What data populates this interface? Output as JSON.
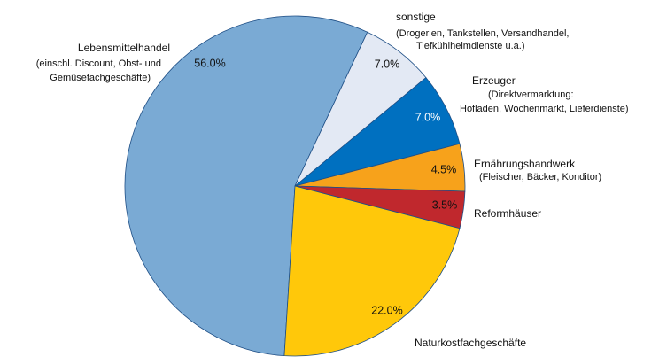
{
  "chart_data": {
    "type": "pie",
    "categories": [
      "Lebensmittelhandel",
      "sonstige",
      "Erzeuger",
      "Ernährungshandwerk",
      "Reformhäuser",
      "Naturkostfachgeschäfte"
    ],
    "descriptions": [
      [
        "(einschl. Discount, Obst- und",
        "Gemüsefachgeschäfte)"
      ],
      [
        "(Drogerien, Tankstellen, Versandhandel,",
        "Tiefkühlheimdienste u.a.)"
      ],
      [
        "(Direktvermarktung:",
        "Hofladen, Wochenmarkt, Lieferdienste)"
      ],
      [
        "(Fleischer, Bäcker, Konditor)"
      ],
      [],
      []
    ],
    "values": [
      56.0,
      7.0,
      7.0,
      4.5,
      3.5,
      22.0
    ],
    "value_labels": [
      "56.0%",
      "7.0%",
      "7.0%",
      "4.5%",
      "3.5%",
      "22.0%"
    ],
    "colors": [
      "#7aaad4",
      "#e3e9f4",
      "#0070c0",
      "#f7a21b",
      "#c0282d",
      "#ffc80a"
    ]
  }
}
